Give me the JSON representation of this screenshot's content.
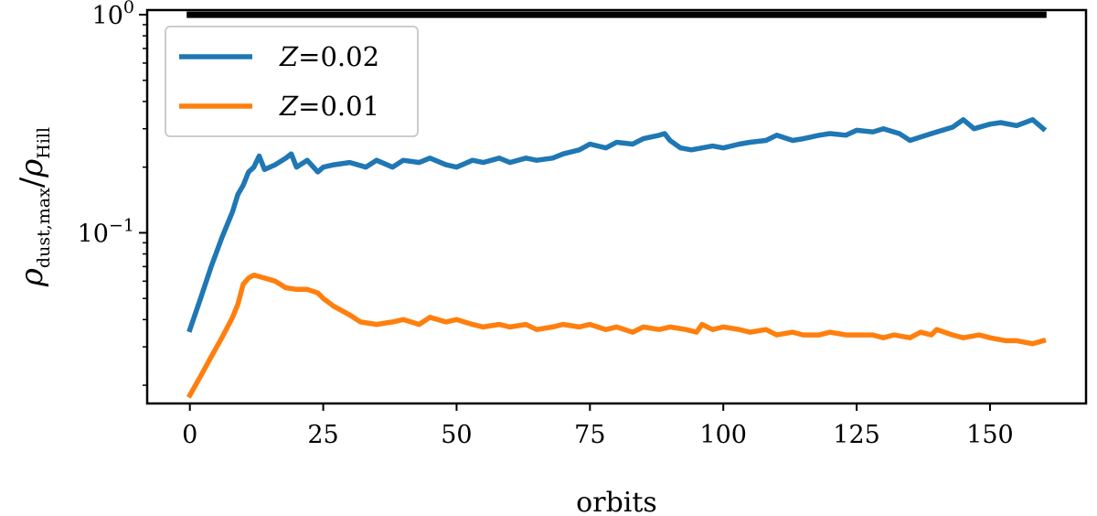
{
  "chart_data": {
    "type": "line",
    "title": "",
    "xlabel": "orbits",
    "ylabel": "ρdust,max/ρHill",
    "yscale": "log",
    "xlim": [
      -8,
      168
    ],
    "ylim": [
      0.0165,
      1.05
    ],
    "xticks": [
      0,
      25,
      50,
      75,
      100,
      125,
      150
    ],
    "xtick_labels": [
      "0",
      "25",
      "50",
      "75",
      "100",
      "125",
      "150"
    ],
    "yticks": [
      1,
      0.1
    ],
    "ytick_labels": [
      {
        "base": "10",
        "exp": "0"
      },
      {
        "base": "10",
        "exp": "−1"
      }
    ],
    "grid": false,
    "legend": {
      "placement": "upper left"
    },
    "series": [
      {
        "name": "Z=0.02",
        "legend_label": {
          "var": "Z",
          "value": "=0.02"
        },
        "color": "#1f77b4",
        "x": [
          0,
          2,
          4,
          6,
          8,
          9,
          10,
          11,
          12,
          13,
          14,
          16,
          18,
          19,
          20,
          22,
          24,
          25,
          27,
          30,
          33,
          35,
          38,
          40,
          43,
          45,
          48,
          50,
          53,
          55,
          58,
          60,
          63,
          65,
          68,
          70,
          73,
          75,
          78,
          80,
          83,
          85,
          88,
          89,
          90,
          92,
          94,
          96,
          98,
          100,
          103,
          105,
          108,
          110,
          113,
          115,
          118,
          120,
          123,
          125,
          128,
          130,
          133,
          135,
          137,
          140,
          143,
          145,
          147,
          150,
          152,
          155,
          158,
          160
        ],
        "y": [
          0.036,
          0.05,
          0.07,
          0.095,
          0.125,
          0.15,
          0.165,
          0.19,
          0.2,
          0.225,
          0.195,
          0.205,
          0.22,
          0.23,
          0.2,
          0.215,
          0.19,
          0.2,
          0.205,
          0.21,
          0.2,
          0.215,
          0.2,
          0.215,
          0.21,
          0.22,
          0.205,
          0.2,
          0.215,
          0.21,
          0.22,
          0.21,
          0.22,
          0.215,
          0.22,
          0.23,
          0.24,
          0.255,
          0.245,
          0.26,
          0.255,
          0.27,
          0.28,
          0.285,
          0.265,
          0.245,
          0.24,
          0.245,
          0.25,
          0.245,
          0.255,
          0.26,
          0.265,
          0.28,
          0.265,
          0.27,
          0.28,
          0.285,
          0.28,
          0.295,
          0.29,
          0.3,
          0.285,
          0.265,
          0.275,
          0.29,
          0.305,
          0.33,
          0.3,
          0.315,
          0.32,
          0.31,
          0.33,
          0.3
        ]
      },
      {
        "name": "Z=0.01",
        "legend_label": {
          "var": "Z",
          "value": "=0.01"
        },
        "color": "#ff7f0e",
        "x": [
          0,
          2,
          4,
          6,
          8,
          9,
          10,
          11,
          12,
          14,
          16,
          18,
          20,
          22,
          24,
          25,
          27,
          30,
          32,
          35,
          38,
          40,
          43,
          45,
          48,
          50,
          53,
          55,
          58,
          60,
          63,
          65,
          68,
          70,
          73,
          75,
          78,
          80,
          83,
          85,
          88,
          90,
          93,
          95,
          96,
          98,
          100,
          103,
          105,
          108,
          110,
          113,
          115,
          118,
          120,
          123,
          125,
          128,
          130,
          132,
          135,
          137,
          139,
          140,
          143,
          145,
          148,
          150,
          153,
          155,
          158,
          160
        ],
        "y": [
          0.018,
          0.022,
          0.027,
          0.033,
          0.041,
          0.047,
          0.058,
          0.062,
          0.064,
          0.062,
          0.06,
          0.056,
          0.055,
          0.055,
          0.053,
          0.05,
          0.046,
          0.042,
          0.039,
          0.038,
          0.039,
          0.04,
          0.038,
          0.041,
          0.039,
          0.04,
          0.038,
          0.037,
          0.038,
          0.037,
          0.038,
          0.036,
          0.037,
          0.038,
          0.037,
          0.038,
          0.036,
          0.037,
          0.035,
          0.037,
          0.036,
          0.037,
          0.036,
          0.035,
          0.038,
          0.036,
          0.037,
          0.036,
          0.035,
          0.036,
          0.034,
          0.035,
          0.034,
          0.034,
          0.035,
          0.034,
          0.034,
          0.034,
          0.033,
          0.034,
          0.033,
          0.035,
          0.034,
          0.036,
          0.034,
          0.033,
          0.034,
          0.033,
          0.032,
          0.032,
          0.031,
          0.032
        ]
      },
      {
        "name": "",
        "color": "#000000",
        "x": [
          0,
          160
        ],
        "y": [
          1,
          1
        ]
      }
    ]
  }
}
